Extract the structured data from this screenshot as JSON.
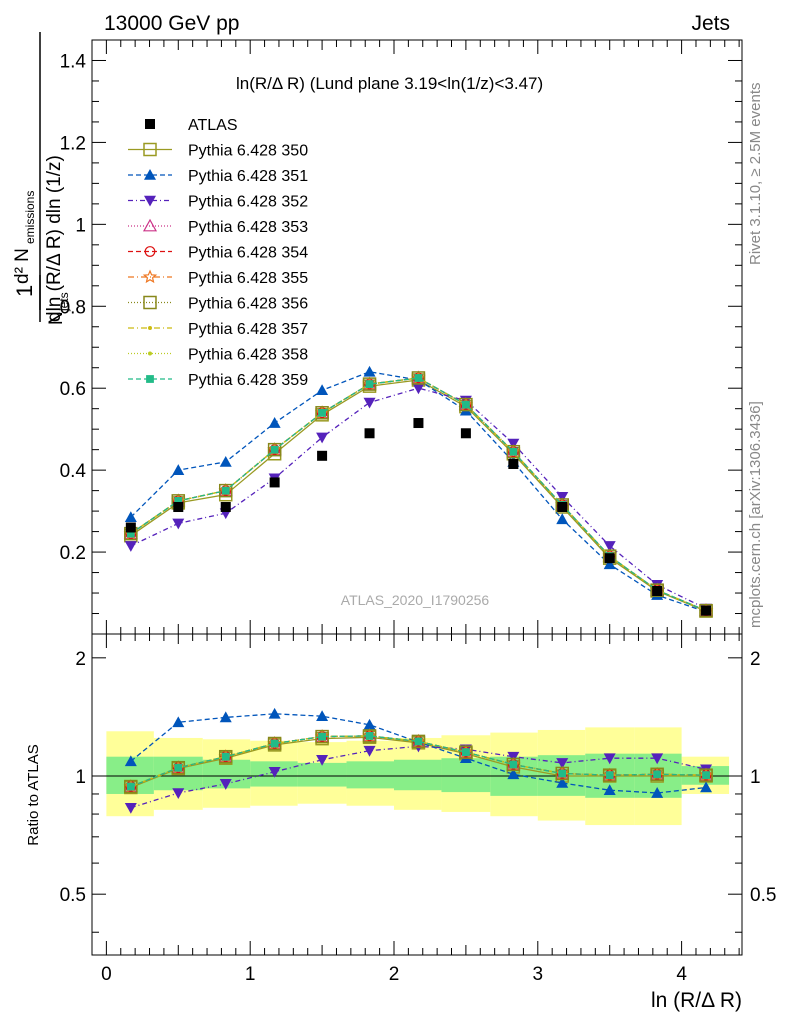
{
  "header": {
    "left": "13000 GeV pp",
    "right": "Jets"
  },
  "side_text": {
    "rivet": "Rivet 3.1.10, ≥ 2.5M events",
    "mcplots": "mcplots.cern.ch [arXiv:1306.3436]"
  },
  "watermark": "ATLAS_2020_I1790256",
  "axis_text": {
    "ylabel_top": "1/N_jets d²N_emissions / dln(R/ΔR) dln(1/z)",
    "ylabel_bottom": "Ratio to ATLAS",
    "xlabel": "ln (R/Δ R)"
  },
  "chart_data": [
    {
      "type": "line",
      "title": "ln(R/Δ R) (Lund plane 3.19<ln(1/z)<3.47)",
      "xlim": [
        -0.1,
        4.42
      ],
      "ylim": [
        0,
        1.45
      ],
      "yticks": [
        0.2,
        0.4,
        0.6,
        0.8,
        1,
        1.2,
        1.4
      ],
      "ytick_labels": [
        "0.2",
        "0.4",
        "0.6",
        "0.8",
        "1",
        "1.2",
        "1.4"
      ],
      "x": [
        0.17,
        0.5,
        0.83,
        1.17,
        1.5,
        1.83,
        2.17,
        2.5,
        2.83,
        3.17,
        3.5,
        3.83,
        4.17
      ],
      "legend_position": "top-left",
      "data": {
        "name": "ATLAS",
        "values": [
          0.26,
          0.31,
          0.31,
          0.37,
          0.435,
          0.49,
          0.515,
          0.49,
          0.415,
          0.31,
          0.185,
          0.105,
          0.057
        ]
      },
      "series": [
        {
          "name": "Pythia 6.428 350",
          "color": "#9a9a22",
          "dash": "",
          "marker": "open-square",
          "values": [
            0.24,
            0.32,
            0.34,
            0.44,
            0.535,
            0.605,
            0.62,
            0.555,
            0.44,
            0.31,
            0.185,
            0.105,
            0.056
          ]
        },
        {
          "name": "Pythia 6.428 351",
          "color": "#0055bb",
          "dash": "5,3",
          "marker": "up-triangle",
          "values": [
            0.285,
            0.4,
            0.42,
            0.515,
            0.595,
            0.64,
            0.62,
            0.545,
            0.42,
            0.28,
            0.17,
            0.095,
            0.054
          ]
        },
        {
          "name": "Pythia 6.428 352",
          "color": "#5522bb",
          "dash": "5,3,1,3",
          "marker": "down-triangle",
          "values": [
            0.215,
            0.27,
            0.295,
            0.38,
            0.48,
            0.565,
            0.6,
            0.57,
            0.465,
            0.335,
            0.215,
            0.12,
            0.062
          ]
        },
        {
          "name": "Pythia 6.428 353",
          "color": "#cc3388",
          "dash": "1,2",
          "marker": "open-up-triangle",
          "values": [
            0.245,
            0.325,
            0.35,
            0.45,
            0.54,
            0.61,
            0.625,
            0.56,
            0.445,
            0.315,
            0.19,
            0.107,
            0.057
          ]
        },
        {
          "name": "Pythia 6.428 354",
          "color": "#dd1111",
          "dash": "5,3",
          "marker": "open-circle",
          "values": [
            0.245,
            0.325,
            0.35,
            0.45,
            0.54,
            0.61,
            0.625,
            0.56,
            0.445,
            0.315,
            0.19,
            0.107,
            0.057
          ]
        },
        {
          "name": "Pythia 6.428 355",
          "color": "#ee7722",
          "dash": "6,3,1,3",
          "marker": "open-star",
          "values": [
            0.245,
            0.325,
            0.35,
            0.45,
            0.54,
            0.61,
            0.625,
            0.56,
            0.445,
            0.315,
            0.19,
            0.107,
            0.057
          ]
        },
        {
          "name": "Pythia 6.428 356",
          "color": "#88881a",
          "dash": "1,2",
          "marker": "open-square",
          "values": [
            0.245,
            0.325,
            0.35,
            0.45,
            0.54,
            0.61,
            0.625,
            0.56,
            0.445,
            0.315,
            0.19,
            0.107,
            0.057
          ]
        },
        {
          "name": "Pythia 6.428 357",
          "color": "#ccbb11",
          "dash": "6,3,1,3",
          "marker": "small-dot",
          "values": [
            0.245,
            0.325,
            0.35,
            0.45,
            0.54,
            0.61,
            0.625,
            0.56,
            0.445,
            0.315,
            0.19,
            0.107,
            0.057
          ]
        },
        {
          "name": "Pythia 6.428 358",
          "color": "#bbcc22",
          "dash": "1,2",
          "marker": "small-dot",
          "values": [
            0.245,
            0.325,
            0.35,
            0.45,
            0.54,
            0.61,
            0.625,
            0.56,
            0.445,
            0.315,
            0.19,
            0.107,
            0.057
          ]
        },
        {
          "name": "Pythia 6.428 359",
          "color": "#22bb88",
          "dash": "5,3",
          "marker": "filled-square",
          "values": [
            0.245,
            0.325,
            0.35,
            0.45,
            0.54,
            0.61,
            0.625,
            0.56,
            0.445,
            0.315,
            0.19,
            0.107,
            0.057
          ]
        }
      ]
    },
    {
      "type": "line",
      "ylabel": "Ratio to ATLAS",
      "xlabel": "ln (R/Δ R)",
      "xlim": [
        -0.1,
        4.42
      ],
      "xticks": [
        0,
        1,
        2,
        3,
        4
      ],
      "xtick_labels": [
        "0",
        "1",
        "2",
        "3",
        "4"
      ],
      "ylim": [
        0.35,
        2.3
      ],
      "ylog": true,
      "yticks": [
        0.5,
        1,
        2
      ],
      "ytick_labels": [
        "0.5",
        "1",
        "2"
      ],
      "x": [
        0.17,
        0.5,
        0.83,
        1.17,
        1.5,
        1.83,
        2.17,
        2.5,
        2.83,
        3.17,
        3.5,
        3.83,
        4.17
      ],
      "bands": {
        "x_edges": [
          0,
          0.33,
          0.67,
          1.0,
          1.33,
          1.67,
          2.0,
          2.33,
          2.67,
          3.0,
          3.33,
          3.67,
          4.0,
          4.33
        ],
        "yellow_lo": [
          0.79,
          0.82,
          0.83,
          0.84,
          0.85,
          0.84,
          0.82,
          0.81,
          0.79,
          0.77,
          0.75,
          0.75,
          0.9
        ],
        "yellow_hi": [
          1.3,
          1.25,
          1.24,
          1.23,
          1.22,
          1.23,
          1.25,
          1.27,
          1.29,
          1.31,
          1.33,
          1.33,
          1.12
        ],
        "green_lo": [
          0.9,
          0.92,
          0.93,
          0.94,
          0.94,
          0.93,
          0.92,
          0.91,
          0.89,
          0.89,
          0.88,
          0.88,
          0.95
        ],
        "green_hi": [
          1.12,
          1.12,
          1.1,
          1.09,
          1.08,
          1.09,
          1.1,
          1.11,
          1.12,
          1.13,
          1.14,
          1.14,
          1.06
        ]
      },
      "series": [
        {
          "name": "Pythia 6.428 350",
          "values": [
            0.935,
            1.045,
            1.11,
            1.2,
            1.245,
            1.255,
            1.215,
            1.14,
            1.055,
            1.0,
            1.0,
            1.0,
            1.0
          ]
        },
        {
          "name": "Pythia 6.428 351",
          "values": [
            1.09,
            1.37,
            1.41,
            1.44,
            1.42,
            1.35,
            1.22,
            1.11,
            1.01,
            0.96,
            0.92,
            0.905,
            0.935
          ]
        },
        {
          "name": "Pythia 6.428 352",
          "values": [
            0.83,
            0.905,
            0.955,
            1.025,
            1.1,
            1.16,
            1.19,
            1.17,
            1.12,
            1.08,
            1.11,
            1.11,
            1.04
          ]
        },
        {
          "name": "Pythia 6.428 353",
          "values": [
            0.94,
            1.05,
            1.12,
            1.21,
            1.26,
            1.265,
            1.225,
            1.15,
            1.07,
            1.015,
            1.005,
            1.01,
            1.005
          ]
        },
        {
          "name": "Pythia 6.428 354",
          "values": [
            0.94,
            1.05,
            1.12,
            1.21,
            1.26,
            1.265,
            1.225,
            1.15,
            1.07,
            1.015,
            1.005,
            1.01,
            1.005
          ]
        },
        {
          "name": "Pythia 6.428 355",
          "values": [
            0.94,
            1.05,
            1.12,
            1.21,
            1.26,
            1.265,
            1.225,
            1.15,
            1.07,
            1.015,
            1.005,
            1.01,
            1.005
          ]
        },
        {
          "name": "Pythia 6.428 356",
          "values": [
            0.94,
            1.05,
            1.12,
            1.21,
            1.26,
            1.265,
            1.225,
            1.15,
            1.07,
            1.015,
            1.005,
            1.01,
            1.005
          ]
        },
        {
          "name": "Pythia 6.428 357",
          "values": [
            0.94,
            1.05,
            1.12,
            1.21,
            1.26,
            1.265,
            1.225,
            1.15,
            1.07,
            1.015,
            1.005,
            1.01,
            1.005
          ]
        },
        {
          "name": "Pythia 6.428 358",
          "values": [
            0.94,
            1.05,
            1.12,
            1.21,
            1.26,
            1.265,
            1.225,
            1.15,
            1.07,
            1.015,
            1.005,
            1.01,
            1.005
          ]
        },
        {
          "name": "Pythia 6.428 359",
          "values": [
            0.94,
            1.05,
            1.12,
            1.21,
            1.26,
            1.265,
            1.225,
            1.15,
            1.07,
            1.015,
            1.005,
            1.01,
            1.005
          ]
        }
      ]
    }
  ]
}
